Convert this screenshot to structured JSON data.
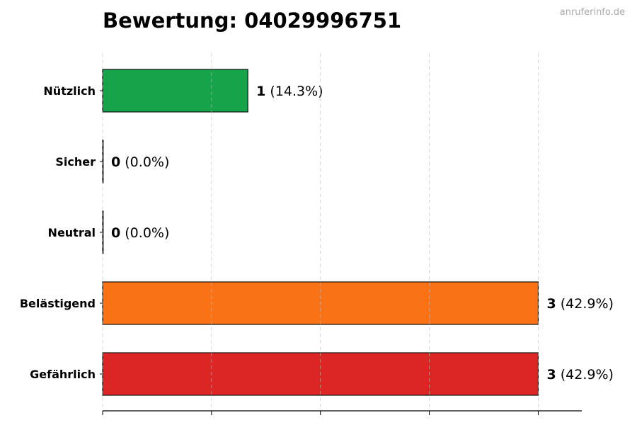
{
  "chart_data": {
    "type": "bar",
    "orientation": "horizontal",
    "title": "Bewertung: 04029996751",
    "watermark": "anruferinfo.de",
    "categories": [
      "Nützlich",
      "Sicher",
      "Neutral",
      "Belästigend",
      "Gefährlich"
    ],
    "values": [
      1,
      0,
      0,
      3,
      3
    ],
    "percent_labels": [
      "(14.3%)",
      "(0.0%)",
      "(0.0%)",
      "(42.9%)",
      "(42.9%)"
    ],
    "colors": [
      "#16a34a",
      "#9ca3af",
      "#6b7280",
      "#f97316",
      "#dc2626"
    ],
    "xlim": [
      0,
      3.3
    ],
    "x_ticks": [
      0,
      0.75,
      1.5,
      2.25,
      3
    ],
    "x_tick_labels_shown": false,
    "grid": "vertical dashed",
    "xlabel": "",
    "ylabel": ""
  }
}
